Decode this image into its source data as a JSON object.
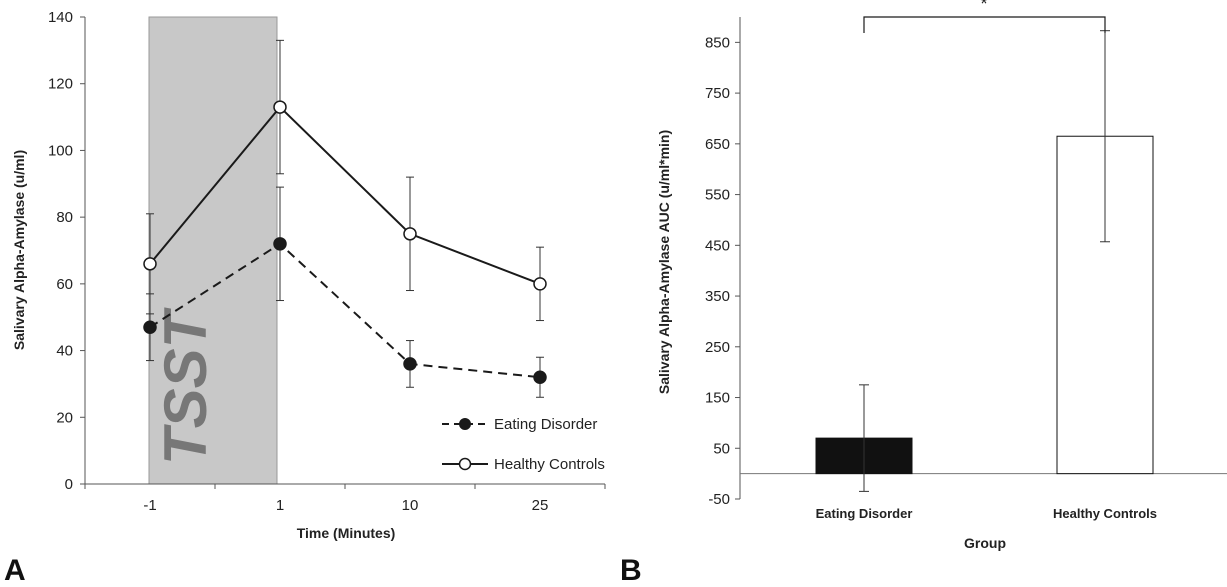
{
  "panels": {
    "a_label": "A",
    "b_label": "B"
  },
  "chart_data": [
    {
      "type": "line",
      "panel": "A",
      "categories": [
        "-1",
        "1",
        "10",
        "25"
      ],
      "xlabel": "Time (Minutes)",
      "ylabel": "Salivary Alpha-Amylase (u/ml)",
      "ylim": [
        0,
        140
      ],
      "yticks": [
        0,
        20,
        40,
        60,
        80,
        100,
        120,
        140
      ],
      "grid": false,
      "shaded_region": {
        "from": "-1",
        "to": "1",
        "label": "TSST",
        "color": "#c8c8c8"
      },
      "legend_position": "bottom-right",
      "series": [
        {
          "name": "Eating Disorder",
          "values": [
            47,
            72,
            36,
            32
          ],
          "error": [
            10,
            17,
            7,
            6
          ],
          "style": "dashed",
          "marker": "filled-circle",
          "color": "#1a1a1a"
        },
        {
          "name": "Healthy Controls",
          "values": [
            66,
            113,
            75,
            60
          ],
          "error": [
            15,
            20,
            17,
            11
          ],
          "style": "solid",
          "marker": "open-circle",
          "color": "#1a1a1a"
        }
      ]
    },
    {
      "type": "bar",
      "panel": "B",
      "categories": [
        "Eating Disorder",
        "Healthy Controls"
      ],
      "values": [
        70,
        665
      ],
      "error": [
        105,
        208
      ],
      "colors": [
        "#111111",
        "#ffffff"
      ],
      "xlabel": "Group",
      "ylabel": "Salivary Alpha-Amylase AUC (u/ml*min)",
      "ylim": [
        -50,
        900
      ],
      "yticks": [
        -50,
        50,
        150,
        250,
        350,
        450,
        550,
        650,
        750,
        850
      ],
      "grid": false,
      "significance": {
        "between": [
          "Eating Disorder",
          "Healthy Controls"
        ],
        "label": "*"
      }
    }
  ]
}
